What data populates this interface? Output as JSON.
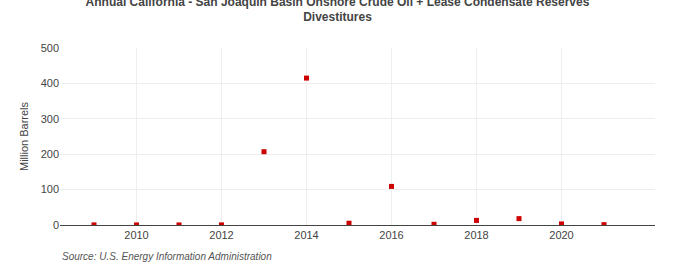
{
  "chart_data": {
    "type": "scatter",
    "title": "Annual California - San Joaquin Basin Onshore Crude Oil + Lease Condensate Reserves",
    "subtitle": "Divestitures",
    "ylabel": "Million Barrels",
    "annotations": [
      "Source: U.S. Energy Information Administration"
    ],
    "x": [
      2009,
      2010,
      2011,
      2012,
      2013,
      2014,
      2015,
      2016,
      2017,
      2018,
      2019,
      2020,
      2021
    ],
    "values": [
      0.3,
      0.2,
      0.2,
      0.3,
      207.0,
      415.0,
      5.0,
      109.0,
      2.0,
      13.0,
      18.0,
      3.0,
      1.0
    ],
    "color": "#cc0000",
    "marker": "square",
    "xlim": [
      2008.2,
      2022.2
    ],
    "xticks": [
      2010,
      2012,
      2014,
      2016,
      2018,
      2020
    ],
    "ylim": [
      0,
      500
    ],
    "yticks": [
      0,
      100,
      200,
      300,
      400,
      500
    ],
    "grid": true
  }
}
